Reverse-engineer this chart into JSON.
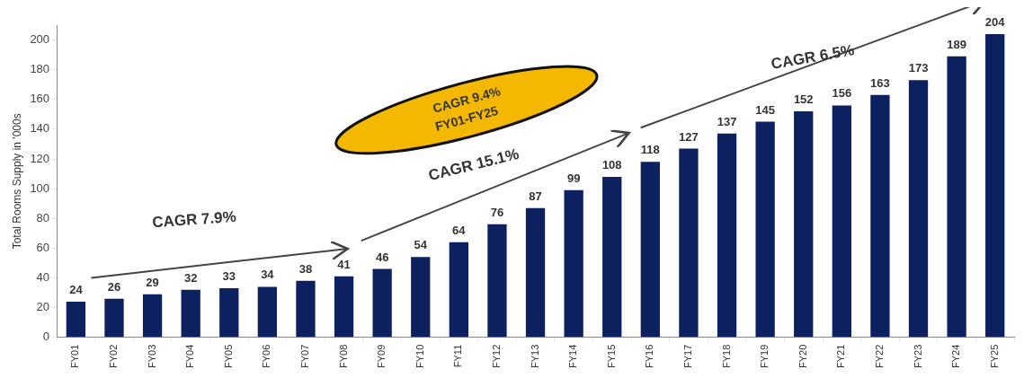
{
  "chart_data": {
    "type": "bar",
    "ylabel": "Total Rooms Supply in '000s",
    "categories": [
      "FY01",
      "FY02",
      "FY03",
      "FY04",
      "FY05",
      "FY06",
      "FY07",
      "FY08",
      "FY09",
      "FY10",
      "FY11",
      "FY12",
      "FY13",
      "FY14",
      "FY15",
      "FY16",
      "FY17",
      "FY18",
      "FY19",
      "FY20",
      "FY21",
      "FY22",
      "FY23",
      "FY24",
      "FY25"
    ],
    "values": [
      24,
      26,
      29,
      32,
      33,
      34,
      38,
      41,
      46,
      54,
      64,
      76,
      87,
      99,
      108,
      118,
      127,
      137,
      145,
      152,
      156,
      163,
      173,
      189,
      204
    ],
    "color": "#0d2160",
    "ylim": [
      0,
      210
    ],
    "yticks": [
      0,
      20,
      40,
      60,
      80,
      100,
      120,
      140,
      160,
      180,
      200
    ],
    "grid": false,
    "legend": false,
    "data_labels": true,
    "annotations": [
      "CAGR 7.9%",
      "CAGR 15.1%",
      "CAGR 6.5%",
      "CAGR 9.4%",
      "FY01-FY25"
    ]
  }
}
